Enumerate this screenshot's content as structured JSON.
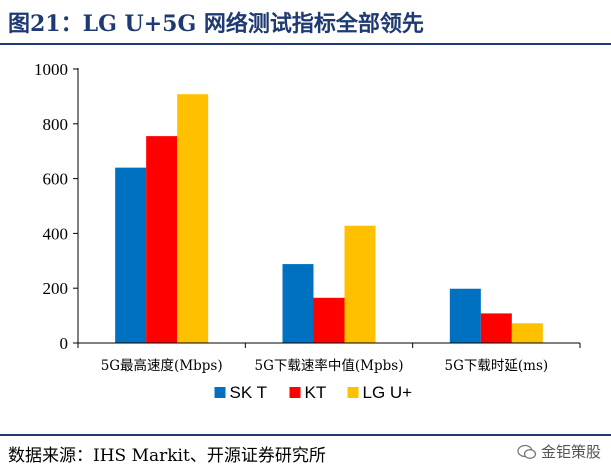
{
  "header": {
    "title": "图21：LG U+5G 网络测试指标全部领先"
  },
  "footer": {
    "source": "数据来源：IHS Markit、开源证券研究所",
    "watermark": "金钜策股"
  },
  "chart_data": {
    "type": "bar",
    "categories": [
      "5G最高速度(Mbps)",
      "5G下载速率中值(Mpbs)",
      "5G下载时延(ms)"
    ],
    "series": [
      {
        "name": "SK T",
        "color": "#0070c0",
        "values": [
          640,
          288,
          198
        ]
      },
      {
        "name": "KT",
        "color": "#ff0000",
        "values": [
          755,
          165,
          108
        ]
      },
      {
        "name": "LG U+",
        "color": "#ffc000",
        "values": [
          908,
          428,
          72
        ]
      }
    ],
    "yticks": [
      0,
      200,
      400,
      600,
      800,
      1000
    ],
    "ylim": [
      0,
      1000
    ],
    "xlabel": "",
    "ylabel": "",
    "legend_position": "bottom",
    "grid": false
  }
}
